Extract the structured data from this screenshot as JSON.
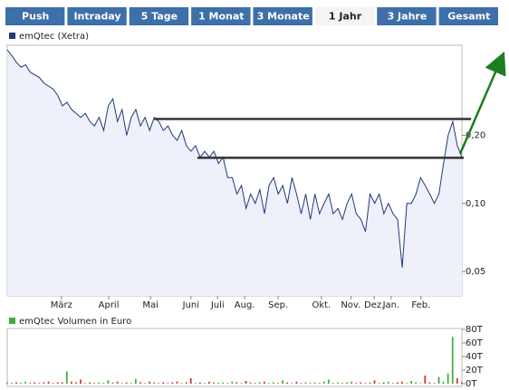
{
  "tabs": {
    "items": [
      "Push",
      "Intraday",
      "5 Tage",
      "1 Monat",
      "3 Monate",
      "1 Jahr",
      "3 Jahre",
      "Gesamt"
    ],
    "active": 5
  },
  "chart_data": [
    {
      "type": "line",
      "series": [
        {
          "name": "emQtec (Xetra)",
          "color": "#1f3a7a",
          "values": [
            0.477,
            0.45,
            0.42,
            0.4,
            0.41,
            0.38,
            0.37,
            0.36,
            0.34,
            0.33,
            0.32,
            0.3,
            0.27,
            0.28,
            0.26,
            0.25,
            0.24,
            0.25,
            0.23,
            0.22,
            0.24,
            0.21,
            0.27,
            0.29,
            0.23,
            0.26,
            0.2,
            0.24,
            0.26,
            0.22,
            0.24,
            0.21,
            0.24,
            0.23,
            0.21,
            0.22,
            0.2,
            0.19,
            0.21,
            0.18,
            0.17,
            0.18,
            0.16,
            0.17,
            0.16,
            0.17,
            0.15,
            0.16,
            0.13,
            0.13,
            0.11,
            0.12,
            0.095,
            0.11,
            0.1,
            0.115,
            0.09,
            0.12,
            0.13,
            0.11,
            0.12,
            0.1,
            0.13,
            0.11,
            0.09,
            0.11,
            0.085,
            0.11,
            0.09,
            0.1,
            0.11,
            0.09,
            0.095,
            0.085,
            0.1,
            0.11,
            0.09,
            0.085,
            0.075,
            0.11,
            0.1,
            0.11,
            0.09,
            0.1,
            0.09,
            0.085,
            0.052,
            0.1,
            0.1,
            0.11,
            0.13,
            0.12,
            0.11,
            0.1,
            0.11,
            0.15,
            0.2,
            0.23,
            0.18,
            0.16
          ]
        }
      ],
      "fill": "#eef0fa",
      "xlim": [
        0,
        99
      ],
      "xticks": [
        {
          "value": 11.8,
          "label": "März"
        },
        {
          "value": 22.1,
          "label": "April"
        },
        {
          "value": 31.2,
          "label": "Mai"
        },
        {
          "value": 40,
          "label": "Juni"
        },
        {
          "value": 45.8,
          "label": "Juli"
        },
        {
          "value": 51.7,
          "label": "Aug."
        },
        {
          "value": 59,
          "label": "Sep."
        },
        {
          "value": 68.4,
          "label": "Okt."
        },
        {
          "value": 74.8,
          "label": "Nov."
        },
        {
          "value": 79.9,
          "label": "Dez."
        },
        {
          "value": 83.6,
          "label": "Jan."
        },
        {
          "value": 90.1,
          "label": "Feb."
        }
      ],
      "ylim": [
        0.039,
        0.5
      ],
      "yticks": [
        {
          "value": 0.05,
          "label": "0,05"
        },
        {
          "value": 0.1,
          "label": "0,10"
        },
        {
          "value": 0.2,
          "label": "0,20"
        }
      ],
      "log_scale": true,
      "hlines": [
        {
          "value": 0.236,
          "x": [
            32,
            101
          ]
        },
        {
          "value": 0.159,
          "x": [
            41.4,
            99.4
          ]
        }
      ]
    },
    {
      "type": "bar",
      "series": [
        {
          "name": "emQtec Volumen in Euro",
          "color": "#3cb043",
          "values": [
            2,
            1,
            2,
            1,
            3,
            1,
            2,
            1,
            2,
            3,
            1,
            2,
            2,
            18,
            3,
            2,
            6,
            1,
            2,
            1,
            2,
            1,
            5,
            2,
            3,
            1,
            2,
            1,
            7,
            2,
            1,
            3,
            2,
            1,
            2,
            1,
            2,
            3,
            1,
            2,
            8,
            1,
            2,
            1,
            3,
            2,
            1,
            2,
            1,
            3,
            2,
            1,
            4,
            2,
            1,
            2,
            3,
            1,
            2,
            1,
            5,
            2,
            1,
            3,
            1,
            2,
            1,
            2,
            1,
            3,
            6,
            1,
            2,
            1,
            2,
            3,
            1,
            2,
            1,
            2,
            5,
            1,
            2,
            3,
            1,
            2,
            3,
            1,
            4,
            2,
            1,
            12,
            2,
            1,
            10,
            3,
            15,
            69,
            8,
            2
          ]
        }
      ],
      "down_color": "#d83030",
      "ylim": [
        0,
        80
      ],
      "yticks": [
        {
          "value": 0,
          "label": "0T"
        },
        {
          "value": 20,
          "label": "20T"
        },
        {
          "value": 40,
          "label": "40T"
        },
        {
          "value": 60,
          "label": "60T"
        },
        {
          "value": 80,
          "label": "80T"
        }
      ]
    }
  ]
}
